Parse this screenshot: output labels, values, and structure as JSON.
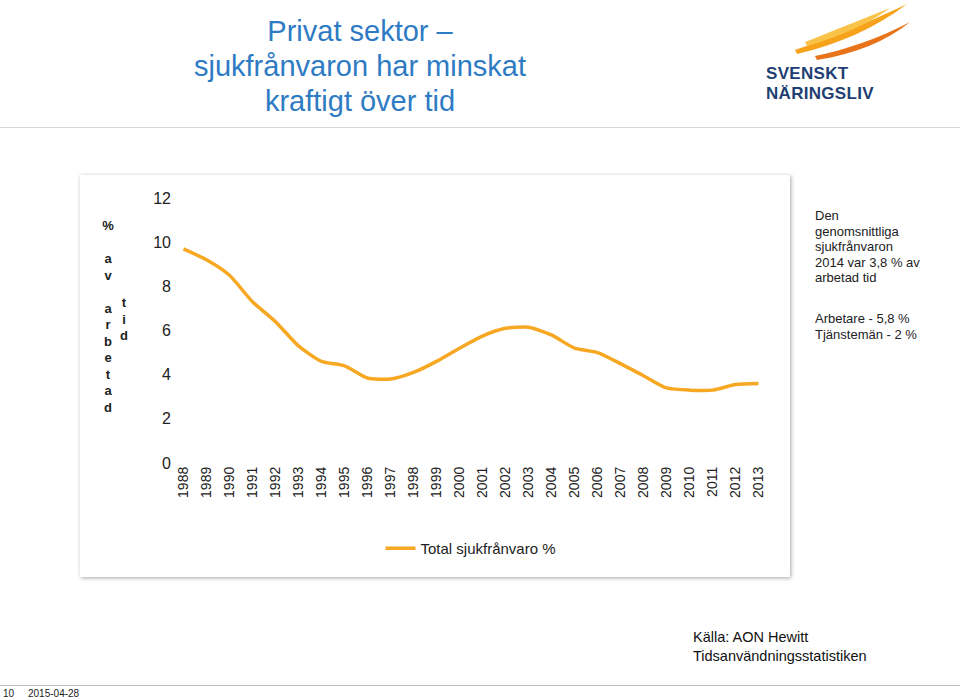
{
  "chart_data": {
    "type": "line",
    "title": "Privat sektor –\nsjukfrånvaron har minskat kraftigt över tid",
    "ylabel": "% av arbetad tid",
    "categories": [
      "1988",
      "1989",
      "1990",
      "1991",
      "1992",
      "1993",
      "1994",
      "1995",
      "1996",
      "1997",
      "1998",
      "1999",
      "2000",
      "2001",
      "2002",
      "2003",
      "2004",
      "2005",
      "2006",
      "2007",
      "2008",
      "2009",
      "2010",
      "2011",
      "2012",
      "2013"
    ],
    "series": [
      {
        "name": "Total sjukfrånvaro %",
        "color": "#f7a823",
        "values": [
          9.7,
          9.2,
          8.5,
          7.3,
          6.4,
          5.3,
          4.6,
          4.4,
          3.85,
          3.8,
          4.1,
          4.6,
          5.2,
          5.75,
          6.1,
          6.15,
          5.8,
          5.2,
          5.0,
          4.5,
          3.95,
          3.4,
          3.3,
          3.3,
          3.55,
          3.6
        ]
      }
    ],
    "ylim": [
      0,
      12
    ],
    "yticks": [
      0,
      2,
      4,
      6,
      8,
      10,
      12
    ],
    "grid": false,
    "legend": "bottom",
    "annotations": [
      "Den\ngenomsnittliga\nsjukfrånvaron\n2014 var 3,8 % av\narbetad tid",
      "Arbetare - 5,8 %\nTjänstemän - 2 %"
    ],
    "source": "Källa: AON Hewitt\nTidsanvändningsstatistiken"
  },
  "slide": {
    "logo": "SVENSKT NÄRINGSLIV",
    "page": "10",
    "date": "2015-04-28"
  }
}
